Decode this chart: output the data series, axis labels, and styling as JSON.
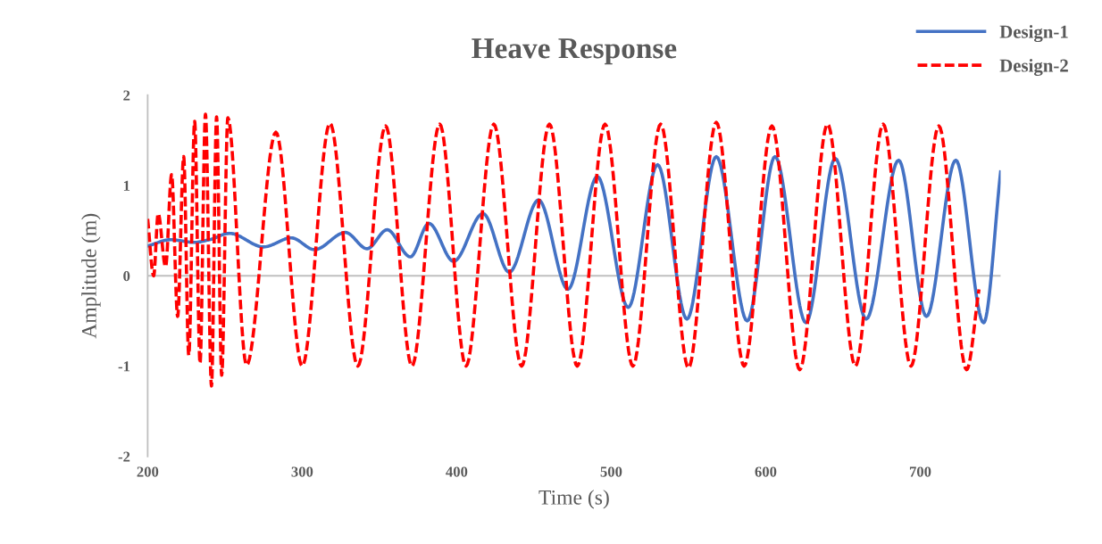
{
  "chart_data": {
    "type": "line",
    "title": "Heave Response",
    "xlabel": "Time (s)",
    "ylabel": "Amplitude (m)",
    "xlim": [
      200,
      752
    ],
    "xticks": [
      200,
      300,
      400,
      500,
      600,
      700
    ],
    "ylim": [
      -2,
      2
    ],
    "yticks": [
      -2,
      -1,
      0,
      1,
      2
    ],
    "grid": false,
    "legend": "top right",
    "marker": "none",
    "ref_lines": [
      {
        "axis": "y",
        "value": 0,
        "color": "#bfbfbf",
        "line_style": "solid"
      }
    ],
    "series": [
      {
        "name": "Design-1",
        "color": "#4472c4",
        "line_style": "solid",
        "x": [
          200,
          215,
          230,
          240,
          253,
          275,
          293,
          308,
          328,
          342,
          355,
          370,
          382,
          398,
          417,
          434,
          453,
          472,
          491,
          511,
          530,
          549,
          568,
          588,
          606,
          626,
          645,
          665,
          686,
          704,
          723,
          741,
          752
        ],
        "values": [
          0.33,
          0.4,
          0.37,
          0.4,
          0.47,
          0.32,
          0.42,
          0.29,
          0.48,
          0.3,
          0.51,
          0.21,
          0.58,
          0.16,
          0.69,
          0.04,
          0.84,
          -0.15,
          1.1,
          -0.35,
          1.23,
          -0.48,
          1.32,
          -0.5,
          1.32,
          -0.52,
          1.3,
          -0.48,
          1.28,
          -0.45,
          1.28,
          -0.52,
          1.15
        ]
      },
      {
        "name": "Design-2",
        "color": "#ff0000",
        "line_style": "dashed",
        "x": [
          200,
          203.9,
          206.8,
          211.6,
          215.5,
          219.4,
          223.3,
          226.6,
          230.4,
          233.9,
          237.4,
          241.3,
          244.6,
          247.9,
          251.9,
          264,
          283,
          300,
          318,
          336,
          354,
          371,
          389,
          406,
          424,
          442,
          460,
          478,
          496,
          514,
          532,
          550,
          568,
          586,
          604,
          622,
          640,
          658,
          676,
          694,
          712,
          730,
          738
        ],
        "values": [
          0.63,
          0.0,
          0.69,
          0.1,
          1.12,
          -0.45,
          1.32,
          -0.88,
          1.71,
          -0.97,
          1.79,
          -1.22,
          1.76,
          -1.1,
          1.75,
          -0.99,
          1.59,
          -1.0,
          1.69,
          -1.0,
          1.66,
          -1.0,
          1.68,
          -1.0,
          1.68,
          -1.0,
          1.68,
          -1.0,
          1.68,
          -1.0,
          1.68,
          -1.02,
          1.7,
          -1.0,
          1.66,
          -1.04,
          1.68,
          -1.0,
          1.68,
          -1.0,
          1.66,
          -1.04,
          -0.15
        ]
      }
    ]
  }
}
